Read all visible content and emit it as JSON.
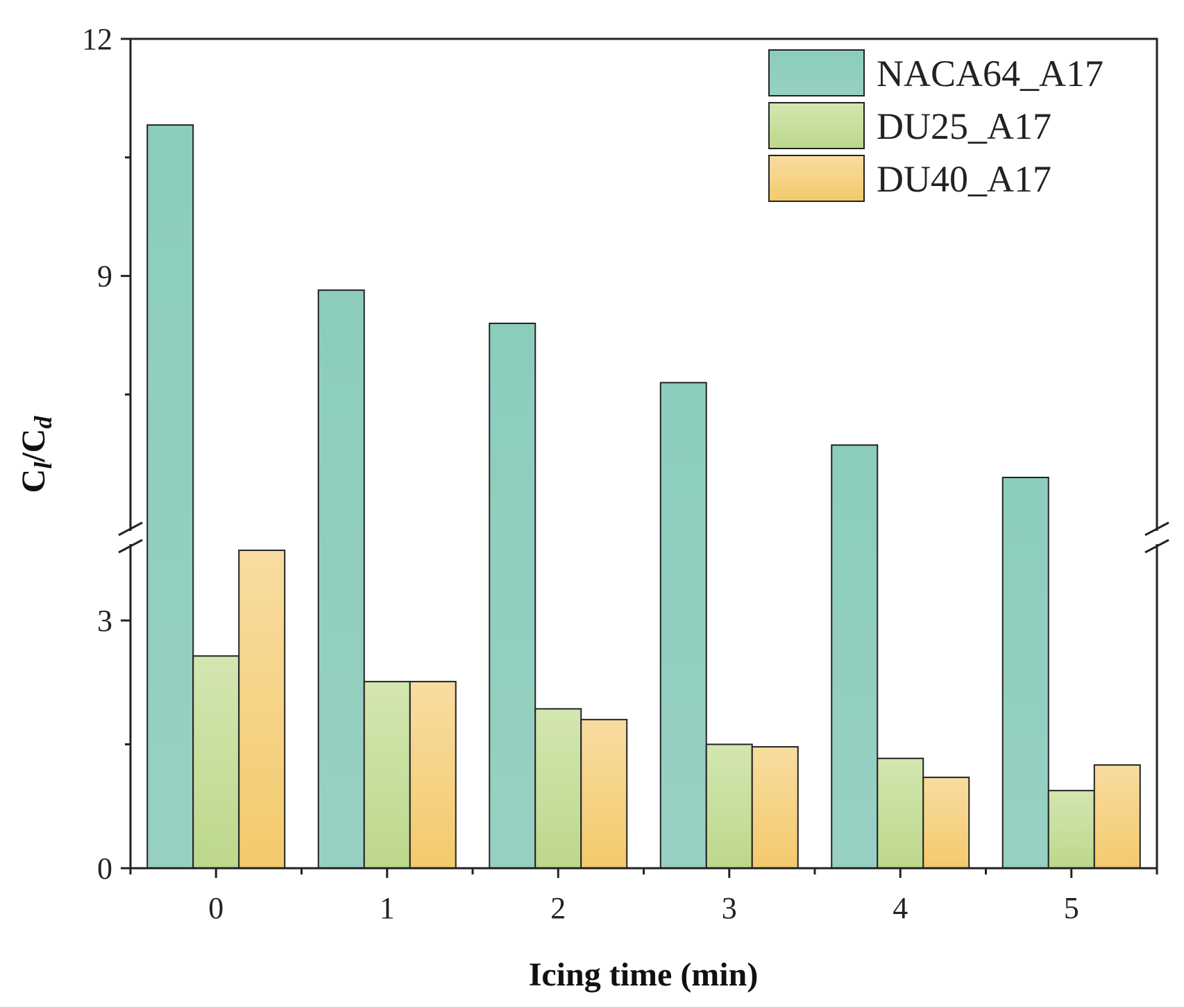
{
  "chart_data": {
    "type": "bar",
    "title": "",
    "xlabel": "Icing time (min)",
    "ylabel": "Cl/Cd",
    "ylabel_parts": {
      "c1": "C",
      "s1": "l",
      "slash": "/",
      "c2": "C",
      "s2": "d"
    },
    "categories": [
      "0",
      "1",
      "2",
      "3",
      "4",
      "5"
    ],
    "y_axis_break": {
      "lower_range": [
        0,
        3.9
      ],
      "upper_range": [
        5.8,
        12
      ]
    },
    "yticks": [
      0,
      3,
      9,
      12
    ],
    "ytick_labels": [
      "0",
      "3",
      "9",
      "12"
    ],
    "legend_position": "top-right",
    "grid": false,
    "series": [
      {
        "name": "NACA64_A17",
        "values": [
          10.91,
          8.82,
          8.4,
          7.65,
          6.86,
          6.45
        ]
      },
      {
        "name": "DU25_A17",
        "values": [
          2.57,
          2.26,
          1.93,
          1.5,
          1.33,
          0.94
        ]
      },
      {
        "name": "DU40_A17",
        "values": [
          3.85,
          2.26,
          1.8,
          1.47,
          1.1,
          1.25
        ]
      }
    ]
  },
  "colors": {
    "NACA64_A17": {
      "top": "#8ccdbd",
      "bottom": "#97d0c2"
    },
    "DU25_A17": {
      "top": "#d3e6b0",
      "bottom": "#bcd88c"
    },
    "DU40_A17": {
      "top": "#f8dca0",
      "bottom": "#f3ca6c"
    },
    "axis": "#222222"
  }
}
